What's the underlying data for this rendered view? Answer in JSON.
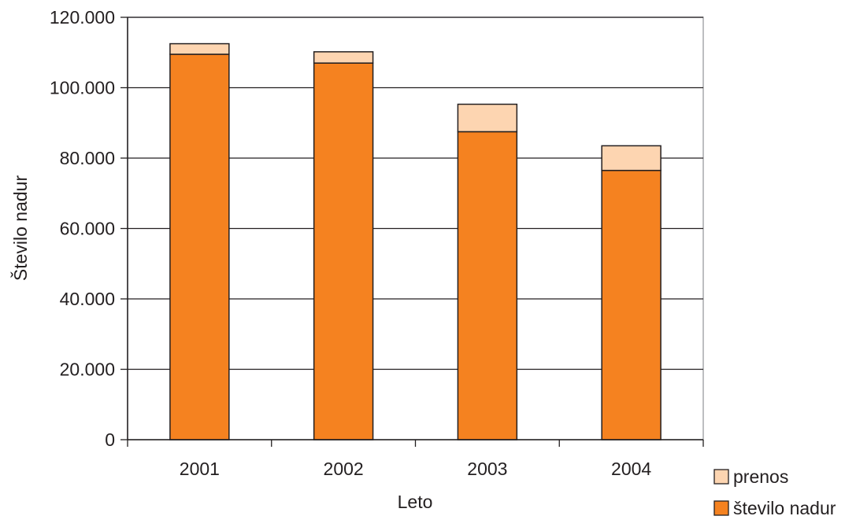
{
  "chart_data": {
    "type": "bar",
    "stacked": true,
    "categories": [
      "2001",
      "2002",
      "2003",
      "2004"
    ],
    "series": [
      {
        "name": "število nadur",
        "color": "#f58220",
        "values": [
          109500,
          107000,
          87500,
          76500
        ]
      },
      {
        "name": "prenos",
        "color": "#fdd5b1",
        "values": [
          3000,
          3200,
          7800,
          7000
        ]
      }
    ],
    "xlabel": "Leto",
    "ylabel": "Število nadur",
    "ylim": [
      0,
      120000
    ],
    "yticks": [
      0,
      20000,
      40000,
      60000,
      80000,
      100000,
      120000
    ],
    "ytick_labels": [
      "0",
      "20.000",
      "40.000",
      "60.000",
      "80.000",
      "100.000",
      "120.000"
    ],
    "grid": true,
    "legend_position": "bottom-right",
    "legend_order": [
      "prenos",
      "število nadur"
    ]
  }
}
